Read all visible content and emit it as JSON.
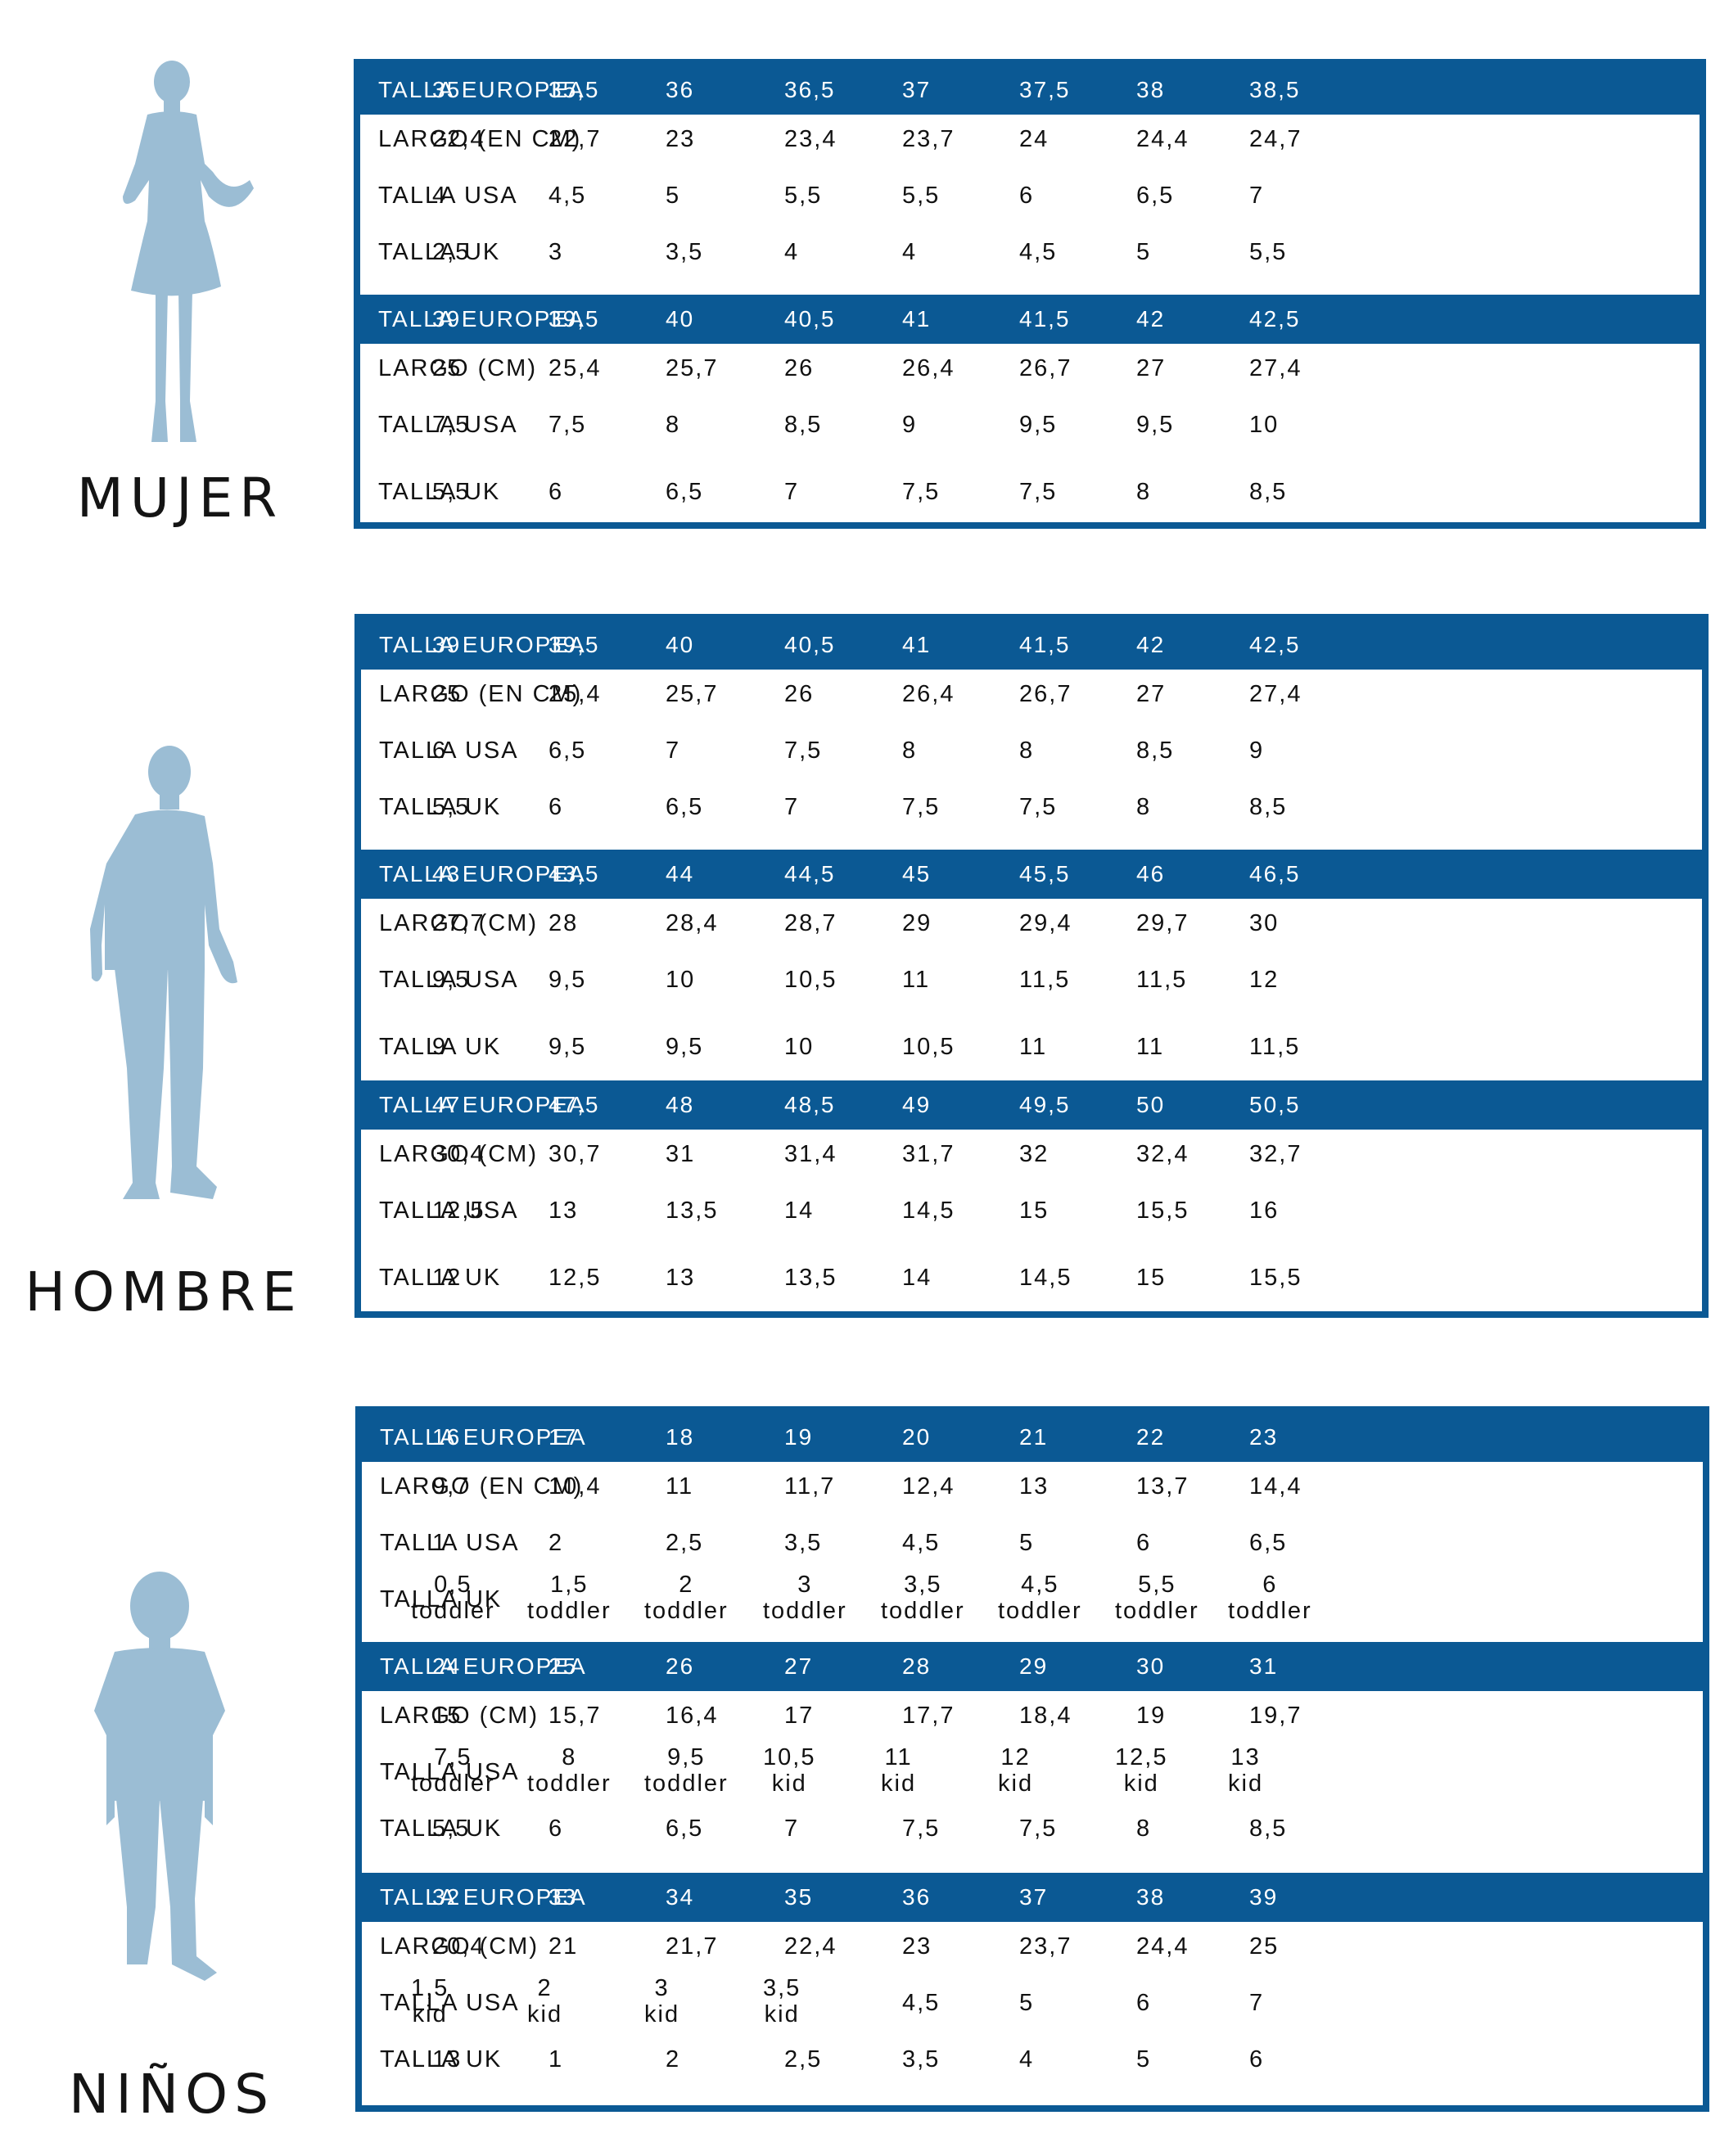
{
  "sections": [
    {
      "label": "MUJER",
      "figure": "woman-silhouette-icon",
      "blocks": [
        {
          "header": {
            "label": "TALLA EUROPEA",
            "values": [
              "35",
              "35,5",
              "36",
              "36,5",
              "37",
              "37,5",
              "38",
              "38,5"
            ]
          },
          "rows": [
            {
              "label": "LARGO (EN CM)",
              "values": [
                "22,4",
                "22,7",
                "23",
                "23,4",
                "23,7",
                "24",
                "24,4",
                "24,7"
              ]
            },
            {
              "label": "TALLA USA",
              "values": [
                "4",
                "4,5",
                "5",
                "5,5",
                "5,5",
                "6",
                "6,5",
                "7"
              ]
            },
            {
              "label": "TALLA UK",
              "values": [
                "2,5",
                "3",
                "3,5",
                "4",
                "4",
                "4,5",
                "5",
                "5,5"
              ]
            }
          ]
        },
        {
          "header": {
            "label": "TALLA EUROPEA",
            "values": [
              "39",
              "39,5",
              "40",
              "40,5",
              "41",
              "41,5",
              "42",
              "42,5"
            ]
          },
          "rows": [
            {
              "label": "LARGO (CM)",
              "values": [
                "25",
                "25,4",
                "25,7",
                "26",
                "26,4",
                "26,7",
                "27",
                "27,4"
              ]
            },
            {
              "label": "TALLA USA",
              "values": [
                "7,5",
                "7,5",
                "8",
                "8,5",
                "9",
                "9,5",
                "9,5",
                "10"
              ]
            },
            {
              "label": "TALLA UK",
              "values": [
                "5,5",
                "6",
                "6,5",
                "7",
                "7,5",
                "7,5",
                "8",
                "8,5"
              ]
            }
          ]
        }
      ]
    },
    {
      "label": "HOMBRE",
      "figure": "man-silhouette-icon",
      "blocks": [
        {
          "header": {
            "label": "TALLA EUROPEA",
            "values": [
              "39",
              "39,5",
              "40",
              "40,5",
              "41",
              "41,5",
              "42",
              "42,5"
            ]
          },
          "rows": [
            {
              "label": "LARGO (EN CM)",
              "values": [
                "25",
                "25,4",
                "25,7",
                "26",
                "26,4",
                "26,7",
                "27",
                "27,4"
              ]
            },
            {
              "label": "TALLA USA",
              "values": [
                "6",
                "6,5",
                "7",
                "7,5",
                "8",
                "8",
                "8,5",
                "9"
              ]
            },
            {
              "label": "TALLA UK",
              "values": [
                "5,5",
                "6",
                "6,5",
                "7",
                "7,5",
                "7,5",
                "8",
                "8,5"
              ]
            }
          ]
        },
        {
          "header": {
            "label": "TALLA EUROPEA",
            "values": [
              "43",
              "43,5",
              "44",
              "44,5",
              "45",
              "45,5",
              "46",
              "46,5"
            ]
          },
          "rows": [
            {
              "label": "LARGO (CM)",
              "values": [
                "27,7",
                "28",
                "28,4",
                "28,7",
                "29",
                "29,4",
                "29,7",
                "30"
              ]
            },
            {
              "label": "TALLA USA",
              "values": [
                "9,5",
                "9,5",
                "10",
                "10,5",
                "11",
                "11,5",
                "11,5",
                "12"
              ]
            },
            {
              "label": "TALLA UK",
              "values": [
                "9",
                "9,5",
                "9,5",
                "10",
                "10,5",
                "11",
                "11",
                "11,5"
              ]
            }
          ]
        },
        {
          "header": {
            "label": "TALLA EUROPEA",
            "values": [
              "47",
              "47,5",
              "48",
              "48,5",
              "49",
              "49,5",
              "50",
              "50,5"
            ]
          },
          "rows": [
            {
              "label": "LARGO (CM)",
              "values": [
                "30,4",
                "30,7",
                "31",
                "31,4",
                "31,7",
                "32",
                "32,4",
                "32,7"
              ]
            },
            {
              "label": "TALLA USA",
              "values": [
                "12,5",
                "13",
                "13,5",
                "14",
                "14,5",
                "15",
                "15,5",
                "16"
              ]
            },
            {
              "label": "TALLA UK",
              "values": [
                "12",
                "12,5",
                "13",
                "13,5",
                "14",
                "14,5",
                "15",
                "15,5"
              ]
            }
          ]
        }
      ]
    },
    {
      "label": "NIÑOS",
      "figure": "child-silhouette-icon",
      "blocks": [
        {
          "header": {
            "label": "TALLA EUROPEA",
            "values": [
              "16",
              "17",
              "18",
              "19",
              "20",
              "21",
              "22",
              "23"
            ]
          },
          "rows": [
            {
              "label": "LARGO (EN CM)",
              "values": [
                "9,7",
                "10,4",
                "11",
                "11,7",
                "12,4",
                "13",
                "13,7",
                "14,4"
              ]
            },
            {
              "label": "TALLA USA",
              "values": [
                "1",
                "2",
                "2,5",
                "3,5",
                "4,5",
                "5",
                "6",
                "6,5"
              ]
            },
            {
              "label": "TALLA UK",
              "values": [
                "0,5\ntoddler",
                "1,5\ntoddler",
                "2\ntoddler",
                "3\ntoddler",
                "3,5\ntoddler",
                "4,5\ntoddler",
                "5,5\ntoddler",
                "6\ntoddler"
              ]
            }
          ]
        },
        {
          "header": {
            "label": "TALLA EUROPEA",
            "values": [
              "24",
              "25",
              "26",
              "27",
              "28",
              "29",
              "30",
              "31"
            ]
          },
          "rows": [
            {
              "label": "LARGO (CM)",
              "values": [
                "15",
                "15,7",
                "16,4",
                "17",
                "17,7",
                "18,4",
                "19",
                "19,7"
              ]
            },
            {
              "label": "TALLA USA",
              "values": [
                "7,5\ntoddler",
                "8\ntoddler",
                "9,5\ntoddler",
                "10,5\nkid",
                "11\nkid",
                "12\nkid",
                "12,5\nkid",
                "13\nkid"
              ]
            },
            {
              "label": "TALLA UK",
              "values": [
                "5,5",
                "6",
                "6,5",
                "7",
                "7,5",
                "7,5",
                "8",
                "8,5"
              ]
            }
          ]
        },
        {
          "header": {
            "label": "TALLA EUROPEA",
            "values": [
              "32",
              "33",
              "34",
              "35",
              "36",
              "37",
              "38",
              "39"
            ]
          },
          "rows": [
            {
              "label": "LARGO (CM)",
              "values": [
                "20,4",
                "21",
                "21,7",
                "22,4",
                "23",
                "23,7",
                "24,4",
                "25"
              ]
            },
            {
              "label": "TALLA USA",
              "values": [
                "1,5\nkid",
                "2\nkid",
                "3\nkid",
                "3,5\nkid",
                "4,5",
                "5",
                "6",
                "7"
              ]
            },
            {
              "label": "TALLA UK",
              "values": [
                "13",
                "1",
                "2",
                "2,5",
                "3,5",
                "4",
                "5",
                "6"
              ]
            }
          ]
        }
      ]
    }
  ],
  "colors": {
    "header_bg": "#0b5994",
    "silhouette": "#9bbdd4"
  }
}
